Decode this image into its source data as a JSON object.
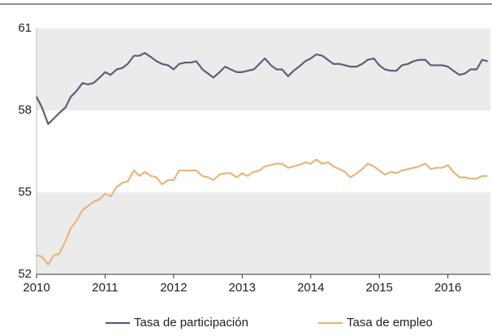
{
  "chart_data": {
    "type": "line",
    "x": [
      2010.0,
      2010.08,
      2010.17,
      2010.25,
      2010.33,
      2010.42,
      2010.5,
      2010.58,
      2010.67,
      2010.75,
      2010.83,
      2010.92,
      2011.0,
      2011.08,
      2011.17,
      2011.25,
      2011.33,
      2011.42,
      2011.5,
      2011.58,
      2011.67,
      2011.75,
      2011.83,
      2011.92,
      2012.0,
      2012.08,
      2012.17,
      2012.25,
      2012.33,
      2012.42,
      2012.5,
      2012.58,
      2012.67,
      2012.75,
      2012.83,
      2012.92,
      2013.0,
      2013.08,
      2013.17,
      2013.25,
      2013.33,
      2013.42,
      2013.5,
      2013.58,
      2013.67,
      2013.75,
      2013.83,
      2013.92,
      2014.0,
      2014.08,
      2014.17,
      2014.25,
      2014.33,
      2014.42,
      2014.5,
      2014.58,
      2014.67,
      2014.75,
      2014.83,
      2014.92,
      2015.0,
      2015.08,
      2015.17,
      2015.25,
      2015.33,
      2015.42,
      2015.5,
      2015.58,
      2015.67,
      2015.75,
      2015.83,
      2015.92,
      2016.0,
      2016.08,
      2016.17,
      2016.25,
      2016.33,
      2016.42,
      2016.5,
      2016.58
    ],
    "series": [
      {
        "name": "Tasa de participación",
        "color": "#5a6178",
        "values": [
          58.5,
          58.1,
          57.5,
          57.7,
          57.9,
          58.1,
          58.5,
          58.7,
          59.0,
          58.95,
          59.0,
          59.2,
          59.4,
          59.3,
          59.5,
          59.55,
          59.7,
          60.0,
          60.0,
          60.1,
          59.95,
          59.8,
          59.7,
          59.65,
          59.5,
          59.7,
          59.75,
          59.75,
          59.8,
          59.5,
          59.35,
          59.2,
          59.4,
          59.6,
          59.5,
          59.4,
          59.4,
          59.45,
          59.5,
          59.7,
          59.9,
          59.65,
          59.5,
          59.5,
          59.25,
          59.45,
          59.6,
          59.8,
          59.9,
          60.05,
          60.0,
          59.85,
          59.7,
          59.7,
          59.65,
          59.6,
          59.6,
          59.7,
          59.85,
          59.9,
          59.65,
          59.5,
          59.45,
          59.45,
          59.65,
          59.7,
          59.8,
          59.85,
          59.85,
          59.65,
          59.65,
          59.65,
          59.6,
          59.45,
          59.3,
          59.35,
          59.5,
          59.5,
          59.85,
          59.8
        ]
      },
      {
        "name": "Tasa de empleo",
        "color": "#e8b57c",
        "values": [
          52.7,
          52.65,
          52.35,
          52.7,
          52.75,
          53.2,
          53.7,
          53.95,
          54.35,
          54.5,
          54.65,
          54.75,
          54.95,
          54.85,
          55.2,
          55.35,
          55.4,
          55.8,
          55.6,
          55.75,
          55.6,
          55.55,
          55.3,
          55.45,
          55.45,
          55.8,
          55.8,
          55.8,
          55.8,
          55.6,
          55.55,
          55.45,
          55.65,
          55.7,
          55.7,
          55.55,
          55.7,
          55.6,
          55.75,
          55.8,
          55.95,
          56.0,
          56.05,
          56.05,
          55.9,
          55.95,
          56.0,
          56.1,
          56.05,
          56.2,
          56.05,
          56.1,
          55.95,
          55.85,
          55.75,
          55.55,
          55.7,
          55.85,
          56.05,
          55.95,
          55.8,
          55.65,
          55.75,
          55.7,
          55.8,
          55.85,
          55.9,
          55.95,
          56.05,
          55.85,
          55.9,
          55.9,
          56.0,
          55.75,
          55.55,
          55.55,
          55.5,
          55.5,
          55.6,
          55.6
        ]
      }
    ],
    "xlim": [
      2010,
      2016.62
    ],
    "xticks": [
      2010,
      2011,
      2012,
      2013,
      2014,
      2015,
      2016
    ],
    "ylim": [
      52,
      61
    ],
    "yticks": [
      52,
      55,
      58,
      61
    ],
    "band_color": "#ebebeb",
    "legend": "bottom"
  }
}
